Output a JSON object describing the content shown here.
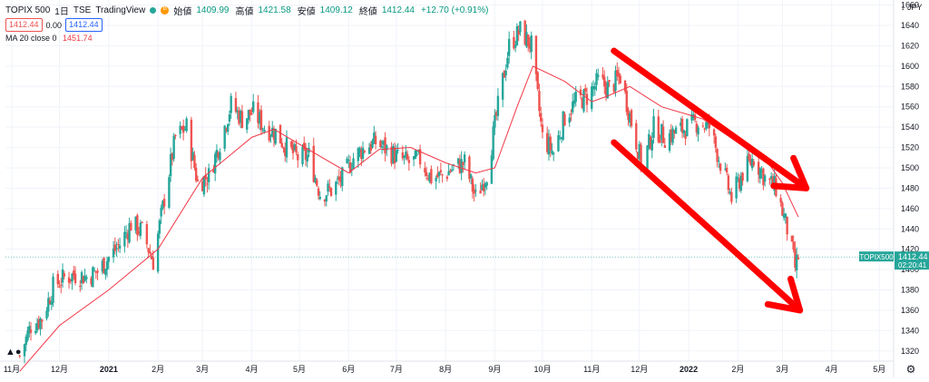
{
  "header": {
    "symbol": "TOPIX 500",
    "interval": "1日",
    "exchange": "TSE",
    "source": "TradingView",
    "status_icon": "B",
    "open_label": "始値",
    "open": "1409.99",
    "high_label": "高値",
    "high": "1421.58",
    "low_label": "安値",
    "low": "1409.12",
    "close_label": "終値",
    "close": "1412.44",
    "change": "+12.70 (+0.91%)",
    "bid": "1412.44",
    "spread": "0.00",
    "ask": "1412.44"
  },
  "indicator": {
    "label": "MA 20 close 0",
    "value": "1451.74"
  },
  "price_scale": {
    "currency": "JPY",
    "ticks": [
      1320,
      1340,
      1360,
      1380,
      1400,
      1420,
      1440,
      1460,
      1480,
      1500,
      1520,
      1540,
      1560,
      1580,
      1600,
      1620,
      1640,
      1660
    ],
    "last_label": "TOPIX500",
    "last_price": "1412.44",
    "countdown": "02:20:41"
  },
  "time_axis": [
    "11月",
    "12月",
    "2021",
    "2月",
    "3月",
    "4月",
    "5月",
    "6月",
    "7月",
    "8月",
    "9月",
    "10月",
    "11月",
    "12月",
    "2022",
    "2月",
    "3月",
    "4月",
    "5月"
  ],
  "colors": {
    "up": "#26a69a",
    "down": "#ef5350",
    "ma": "#f23645",
    "annotation": "#ff0000",
    "last_price_bg": "#26a69a"
  },
  "chart_data": {
    "type": "candlestick",
    "series": [
      {
        "name": "TOPIX 500",
        "kind": "candlestick",
        "points": [
          [
            "2020-11-06",
            1315
          ],
          [
            "2020-11-13",
            1345
          ],
          [
            "2020-11-20",
            1352
          ],
          [
            "2020-11-27",
            1383
          ],
          [
            "2020-12-04",
            1392
          ],
          [
            "2020-12-11",
            1395
          ],
          [
            "2020-12-18",
            1393
          ],
          [
            "2020-12-25",
            1398
          ],
          [
            "2021-01-08",
            1425
          ],
          [
            "2021-01-15",
            1445
          ],
          [
            "2021-01-22",
            1438
          ],
          [
            "2021-01-29",
            1408
          ],
          [
            "2021-02-05",
            1470
          ],
          [
            "2021-02-12",
            1530
          ],
          [
            "2021-02-19",
            1540
          ],
          [
            "2021-02-26",
            1485
          ],
          [
            "2021-03-05",
            1492
          ],
          [
            "2021-03-12",
            1525
          ],
          [
            "2021-03-19",
            1562
          ],
          [
            "2021-03-26",
            1548
          ],
          [
            "2021-04-02",
            1555
          ],
          [
            "2021-04-09",
            1540
          ],
          [
            "2021-04-16",
            1535
          ],
          [
            "2021-04-23",
            1520
          ],
          [
            "2021-04-30",
            1510
          ],
          [
            "2021-05-07",
            1512
          ],
          [
            "2021-05-14",
            1475
          ],
          [
            "2021-05-21",
            1478
          ],
          [
            "2021-05-28",
            1490
          ],
          [
            "2021-06-04",
            1510
          ],
          [
            "2021-06-11",
            1520
          ],
          [
            "2021-06-18",
            1525
          ],
          [
            "2021-06-25",
            1518
          ],
          [
            "2021-07-02",
            1510
          ],
          [
            "2021-07-09",
            1505
          ],
          [
            "2021-07-16",
            1508
          ],
          [
            "2021-07-23",
            1490
          ],
          [
            "2021-07-30",
            1492
          ],
          [
            "2021-08-06",
            1500
          ],
          [
            "2021-08-13",
            1505
          ],
          [
            "2021-08-20",
            1470
          ],
          [
            "2021-08-27",
            1495
          ],
          [
            "2021-09-03",
            1560
          ],
          [
            "2021-09-10",
            1620
          ],
          [
            "2021-09-17",
            1635
          ],
          [
            "2021-09-24",
            1620
          ],
          [
            "2021-10-01",
            1530
          ],
          [
            "2021-10-08",
            1515
          ],
          [
            "2021-10-15",
            1550
          ],
          [
            "2021-10-22",
            1565
          ],
          [
            "2021-10-29",
            1570
          ],
          [
            "2021-11-05",
            1585
          ],
          [
            "2021-11-12",
            1578
          ],
          [
            "2021-11-19",
            1590
          ],
          [
            "2021-11-26",
            1545
          ],
          [
            "2021-12-03",
            1500
          ],
          [
            "2021-12-10",
            1540
          ],
          [
            "2021-12-17",
            1530
          ],
          [
            "2021-12-24",
            1535
          ],
          [
            "2022-01-07",
            1545
          ],
          [
            "2022-01-14",
            1540
          ],
          [
            "2022-01-21",
            1505
          ],
          [
            "2022-01-28",
            1470
          ],
          [
            "2022-02-04",
            1495
          ],
          [
            "2022-02-11",
            1510
          ],
          [
            "2022-02-18",
            1490
          ],
          [
            "2022-02-25",
            1480
          ],
          [
            "2022-03-04",
            1440
          ],
          [
            "2022-03-09",
            1402
          ],
          [
            "2022-03-11",
            1412.44
          ]
        ]
      },
      {
        "name": "MA 20 close 0",
        "kind": "line",
        "points": [
          [
            "2020-11-06",
            1300
          ],
          [
            "2020-12-01",
            1345
          ],
          [
            "2021-01-01",
            1380
          ],
          [
            "2021-02-01",
            1420
          ],
          [
            "2021-03-01",
            1490
          ],
          [
            "2021-04-01",
            1530
          ],
          [
            "2021-04-15",
            1538
          ],
          [
            "2021-05-10",
            1515
          ],
          [
            "2021-06-01",
            1495
          ],
          [
            "2021-06-20",
            1518
          ],
          [
            "2021-07-10",
            1520
          ],
          [
            "2021-08-01",
            1505
          ],
          [
            "2021-08-20",
            1495
          ],
          [
            "2021-09-01",
            1500
          ],
          [
            "2021-09-15",
            1560
          ],
          [
            "2021-09-25",
            1600
          ],
          [
            "2021-10-15",
            1585
          ],
          [
            "2021-11-01",
            1565
          ],
          [
            "2021-11-10",
            1570
          ],
          [
            "2021-11-25",
            1580
          ],
          [
            "2021-12-15",
            1560
          ],
          [
            "2022-01-10",
            1548
          ],
          [
            "2022-02-01",
            1525
          ],
          [
            "2022-02-20",
            1505
          ],
          [
            "2022-03-01",
            1485
          ],
          [
            "2022-03-11",
            1451.74
          ]
        ]
      }
    ],
    "ylim": [
      1310,
      1665
    ],
    "xlim": [
      "2020-10-28",
      "2022-05-10"
    ],
    "annotations": [
      {
        "type": "arrow",
        "from": [
          "2021-11-15",
          1615
        ],
        "to": [
          "2022-03-16",
          1480
        ]
      },
      {
        "type": "arrow",
        "from": [
          "2021-11-15",
          1525
        ],
        "to": [
          "2022-03-12",
          1360
        ]
      }
    ],
    "grid": true
  }
}
